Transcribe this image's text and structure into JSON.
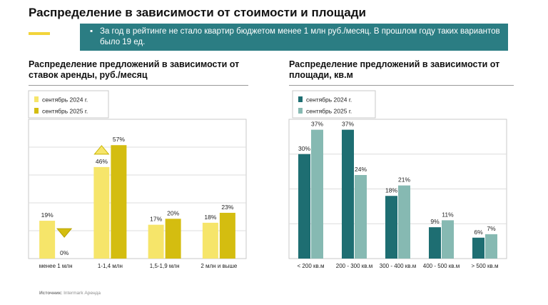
{
  "title": "Распределение в зависимости от стоимости и площади",
  "banner": "За год в рейтинге не стало квартир бюджетом менее 1 млн руб./месяц. В прошлом году таких вариантов было 19 ед.",
  "source": {
    "label": "Источник:",
    "value": "Intermark Аренда"
  },
  "colors": {
    "accent": "#f2d43a",
    "banner_bg": "#2b7d83",
    "price_2024": "#f6e56a",
    "price_2025": "#d4bd10",
    "area_2024": "#1e6e72",
    "area_2025": "#86b9b2",
    "grid": "#dcdcdc"
  },
  "chart_data": [
    {
      "type": "bar",
      "title": "Распределение предложений в зависимости от ставок аренды, руб./месяц",
      "title_lines": [
        "Распределение предложений в зависимости от",
        "ставок аренды, руб./месяц"
      ],
      "categories": [
        "менее 1 млн",
        "1-1,4 млн",
        "1,5-1,9 млн",
        "2 млн и выше"
      ],
      "series": [
        {
          "name": "сентябрь 2024 г.",
          "values": [
            19,
            46,
            17,
            18
          ]
        },
        {
          "name": "сентябрь 2025 г.",
          "values": [
            0,
            57,
            20,
            23
          ]
        }
      ],
      "value_labels": [
        [
          "19%",
          "46%",
          "17%",
          "18%"
        ],
        [
          "0%",
          "57%",
          "20%",
          "23%"
        ]
      ],
      "annotations": [
        {
          "category": "1-1,4 млн",
          "marker": "triangle-up"
        },
        {
          "category": "менее 1 млн",
          "marker": "triangle-down"
        }
      ],
      "ylim": [
        0,
        70
      ],
      "grid": true,
      "legend": "top-left"
    },
    {
      "type": "bar",
      "title": "Распределение предложений в зависимости от площади, кв.м",
      "title_lines": [
        "Распределение предложений в зависимости от",
        "площади, кв.м"
      ],
      "categories": [
        "< 200 кв.м",
        "200 - 300 кв.м",
        "300 - 400 кв.м",
        "400 - 500 кв.м",
        "> 500 кв.м"
      ],
      "series": [
        {
          "name": "сентябрь 2024 г.",
          "values": [
            30,
            37,
            18,
            9,
            6
          ]
        },
        {
          "name": "сентябрь 2025 г.",
          "values": [
            37,
            24,
            21,
            11,
            7
          ]
        }
      ],
      "value_labels": [
        [
          "30%",
          "37%",
          "18%",
          "9%",
          "6%"
        ],
        [
          "37%",
          "24%",
          "21%",
          "11%",
          "7%"
        ]
      ],
      "ylim": [
        0,
        40
      ],
      "grid": true,
      "legend": "top-left"
    }
  ]
}
